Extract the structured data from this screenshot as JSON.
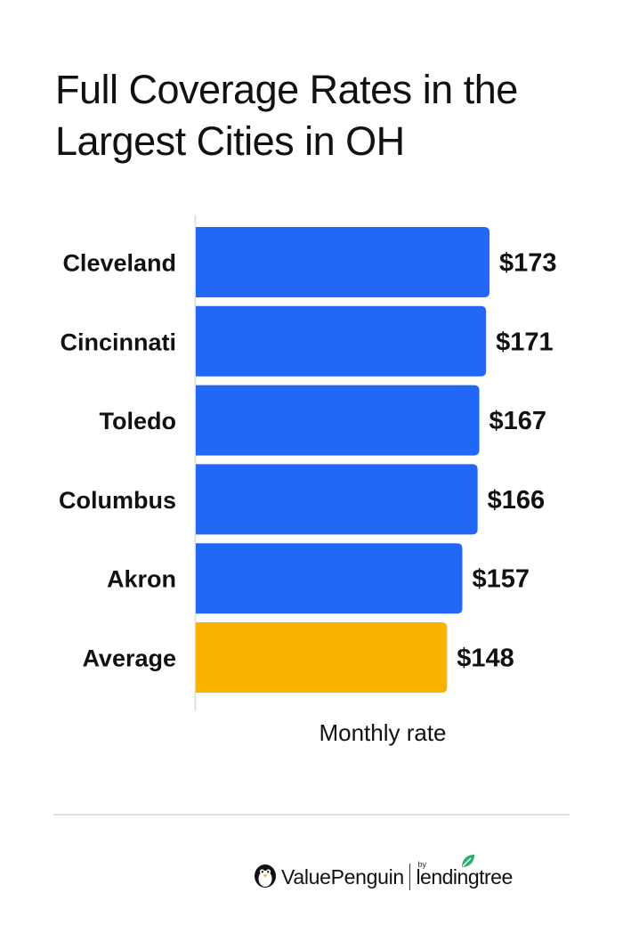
{
  "title_lines": [
    "Full Coverage Rates in the",
    "Largest Cities in OH"
  ],
  "chart_data": {
    "type": "bar",
    "orientation": "horizontal",
    "title": "Full Coverage Rates in the Largest Cities in OH",
    "xlabel": "Monthly rate",
    "ylabel": "",
    "categories": [
      "Cleveland",
      "Cincinnati",
      "Toledo",
      "Columbus",
      "Akron",
      "Average"
    ],
    "values": [
      173,
      171,
      167,
      166,
      157,
      148
    ],
    "value_labels": [
      "$173",
      "$171",
      "$167",
      "$166",
      "$157",
      "$148"
    ],
    "bar_colors": [
      "#2168f7",
      "#2168f7",
      "#2168f7",
      "#2168f7",
      "#2168f7",
      "#f9b200"
    ],
    "xlim": [
      0,
      173
    ],
    "grid": false,
    "legend": "none"
  },
  "footer": {
    "brand_text": "ValuePenguin",
    "by_text": "by",
    "partner_text": "lendingtree",
    "brand_icon": "penguin-icon",
    "partner_icon": "leaf-icon",
    "leaf_color": "#27b06a"
  }
}
